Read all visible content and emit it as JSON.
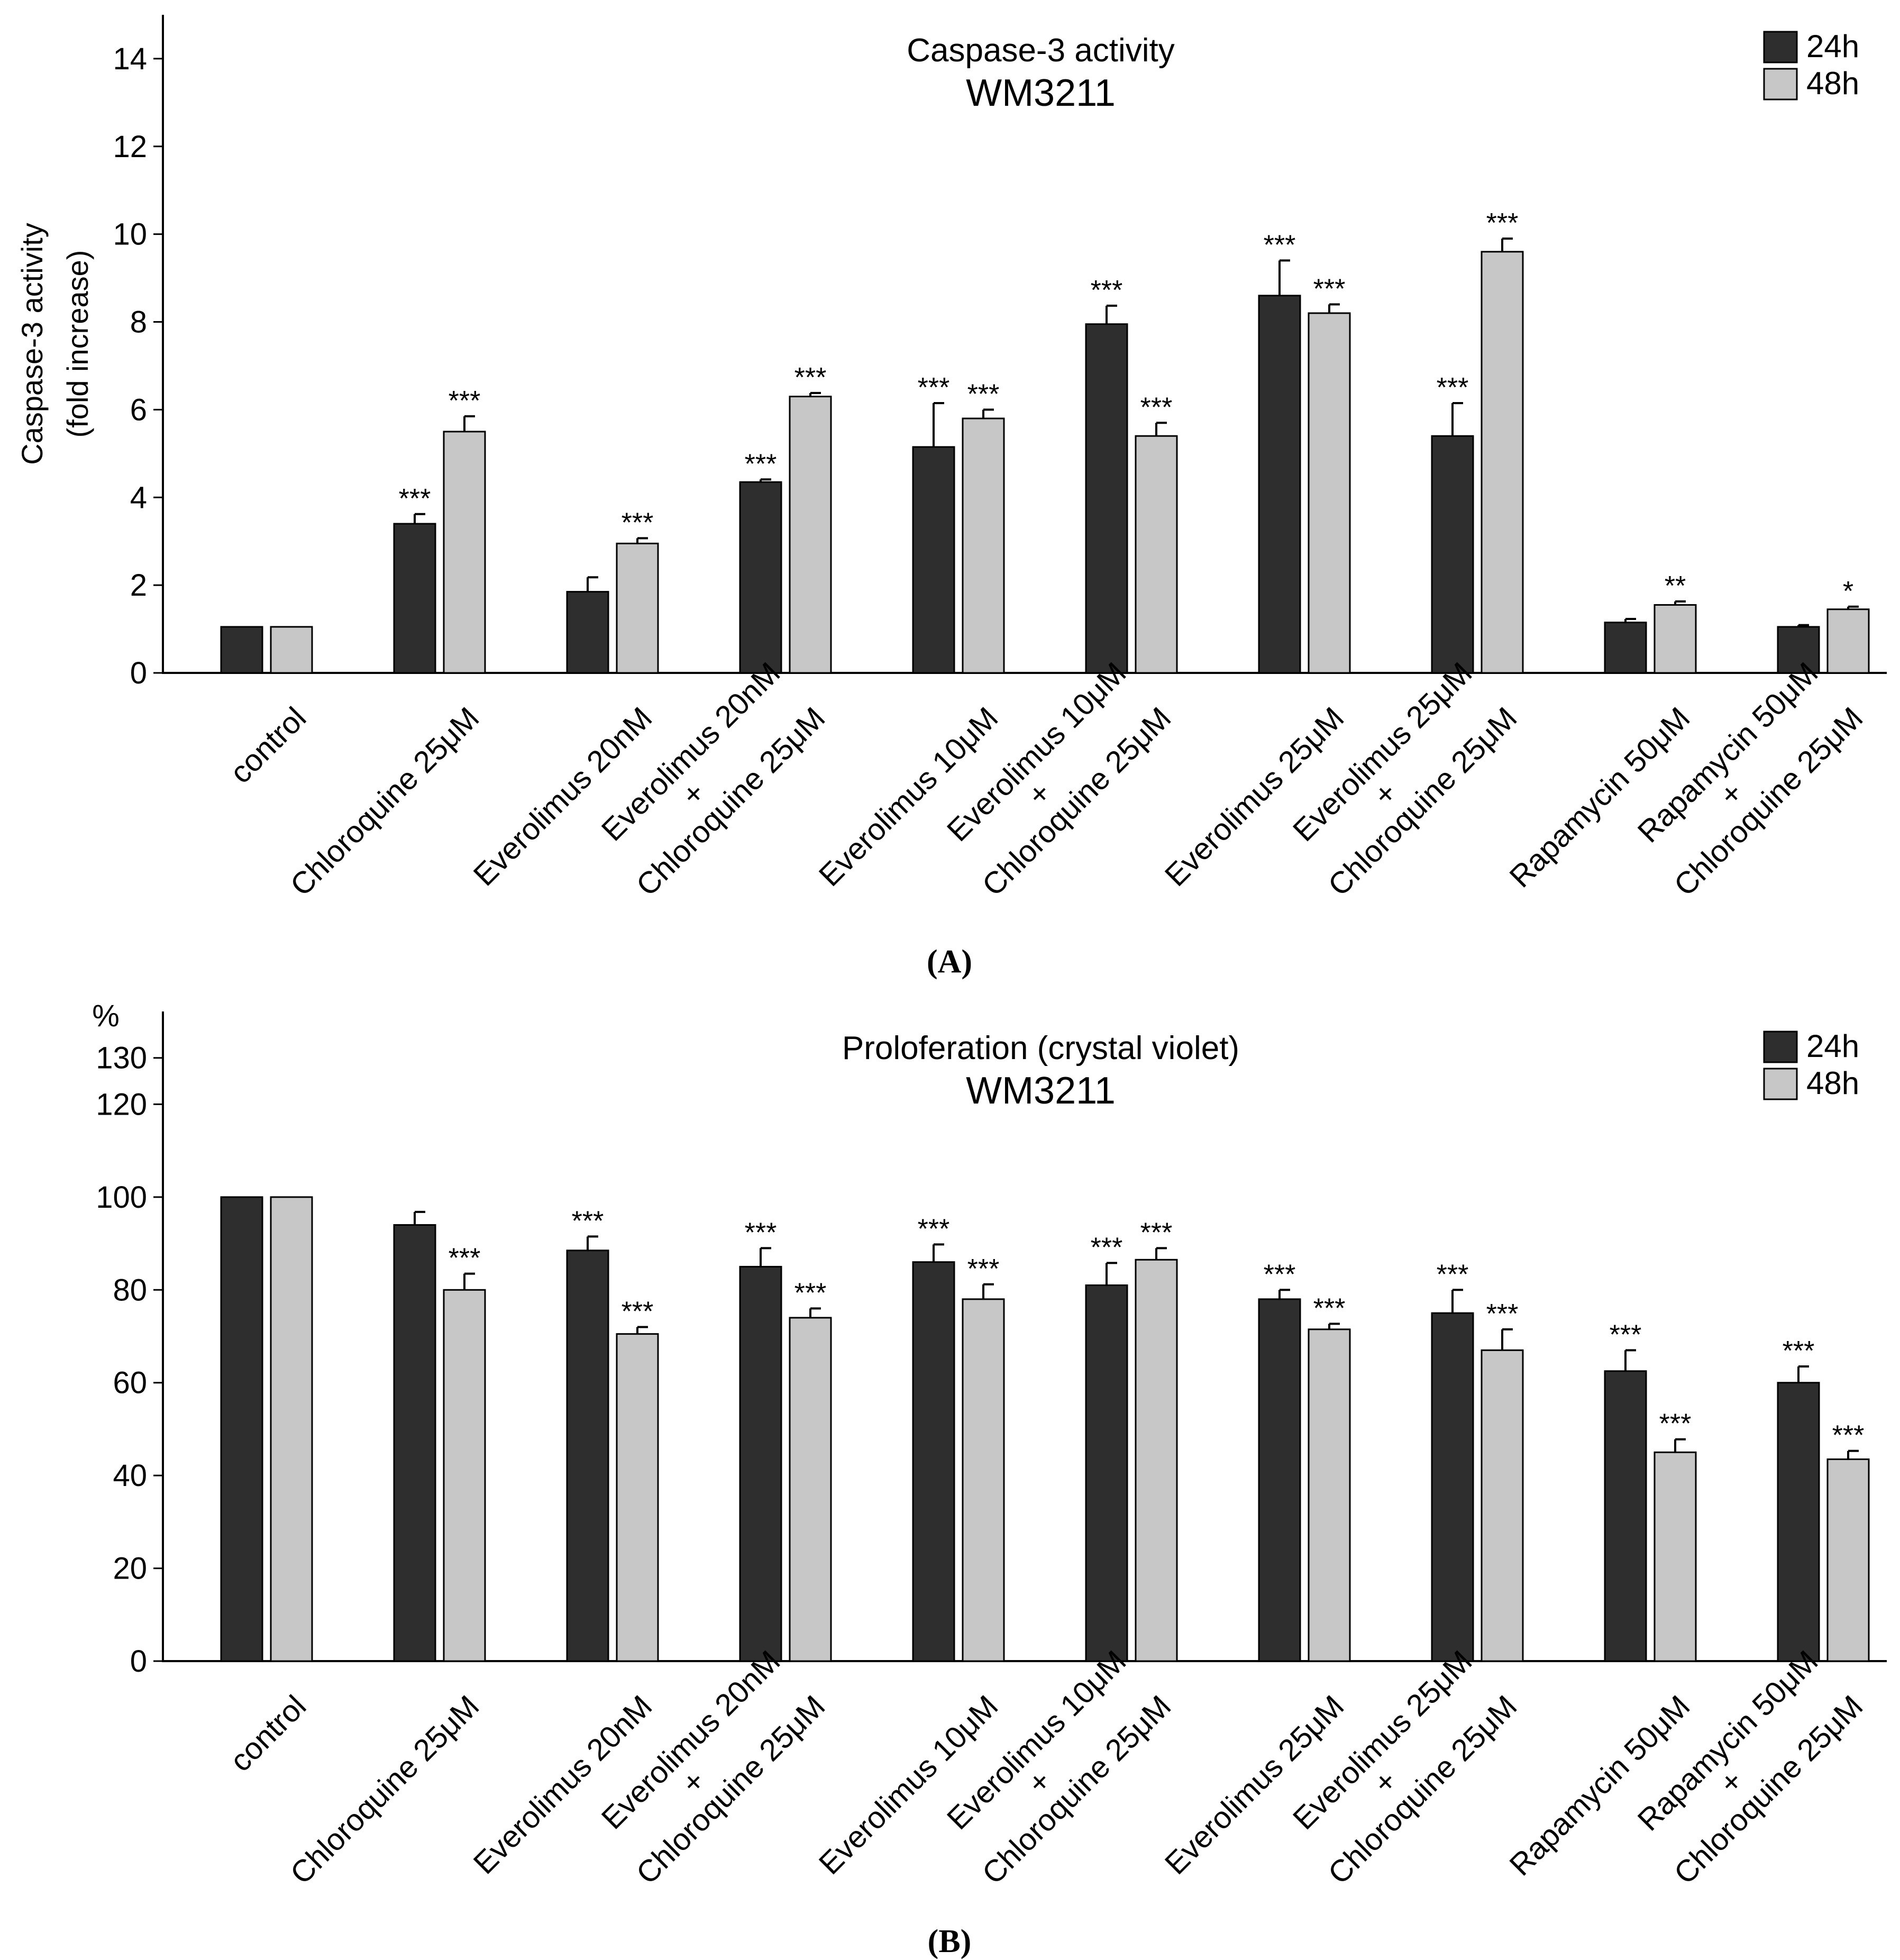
{
  "colors": {
    "series_24h": "#2e2e2e",
    "series_48h": "#c7c7c7",
    "axis": "#000000"
  },
  "chart_data": [
    {
      "type": "bar",
      "panel_label": "(A)",
      "title": "Caspase-3 activity",
      "subtitle": "WM3211",
      "ylabel": "Caspase-3 activity",
      "ylabel2": "(fold increase)",
      "unit_label": "",
      "ylim": [
        0,
        15
      ],
      "yticks": [
        0,
        2,
        4,
        6,
        8,
        10,
        12,
        14
      ],
      "legend_position": "top-right",
      "categories": [
        [
          "control"
        ],
        [
          "Chloroquine 25μM"
        ],
        [
          "Everolimus 20nM"
        ],
        [
          "Everolimus 20nM",
          "+",
          "Chloroquine 25μM"
        ],
        [
          "Everolimus 10μM"
        ],
        [
          "Everolimus 10μM",
          "+",
          "Chloroquine 25μM"
        ],
        [
          "Everolimus 25μM"
        ],
        [
          "Everolimus 25μM",
          "+",
          "Chloroquine 25μM"
        ],
        [
          "Rapamycin 50μM"
        ],
        [
          "Rapamycin 50μM",
          "+",
          "Chloroquine 25μM"
        ]
      ],
      "series": [
        {
          "name": "24h",
          "values": [
            1.05,
            3.4,
            1.85,
            4.35,
            5.15,
            7.95,
            8.6,
            5.4,
            1.15,
            1.05
          ],
          "errors": [
            0,
            0.22,
            0.33,
            0.06,
            1.0,
            0.42,
            0.8,
            0.75,
            0.08,
            0.04
          ],
          "significance": [
            "",
            "***",
            "",
            "***",
            "***",
            "***",
            "***",
            "***",
            "",
            ""
          ]
        },
        {
          "name": "48h",
          "values": [
            1.05,
            5.5,
            2.95,
            6.3,
            5.8,
            5.4,
            8.2,
            9.6,
            1.55,
            1.45
          ],
          "errors": [
            0,
            0.35,
            0.12,
            0.08,
            0.2,
            0.3,
            0.2,
            0.3,
            0.08,
            0.06
          ],
          "significance": [
            "",
            "***",
            "***",
            "***",
            "***",
            "***",
            "***",
            "***",
            "**",
            "*"
          ]
        }
      ]
    },
    {
      "type": "bar",
      "panel_label": "(B)",
      "title": "Proloferation (crystal violet)",
      "subtitle": "WM3211",
      "ylabel": "",
      "ylabel2": "",
      "unit_label": "%",
      "ylim": [
        0,
        140
      ],
      "yticks": [
        0,
        20,
        40,
        60,
        80,
        100,
        120,
        130
      ],
      "legend_position": "top-right",
      "categories": [
        [
          "control"
        ],
        [
          "Chloroquine 25μM"
        ],
        [
          "Everolimus 20nM"
        ],
        [
          "Everolimus 20nM",
          "+",
          "Chloroquine 25μM"
        ],
        [
          "Everolimus 10μM"
        ],
        [
          "Everolimus 10μM",
          "+",
          "Chloroquine 25μM"
        ],
        [
          "Everolimus 25μM"
        ],
        [
          "Everolimus 25μM",
          "+",
          "Chloroquine 25μM"
        ],
        [
          "Rapamycin 50μM"
        ],
        [
          "Rapamycin 50μM",
          "+",
          "Chloroquine 25μM"
        ]
      ],
      "series": [
        {
          "name": "24h",
          "values": [
            100,
            94,
            88.5,
            85,
            86,
            81,
            78,
            75,
            62.5,
            60
          ],
          "errors": [
            0,
            2.8,
            3,
            4,
            3.8,
            4.8,
            2,
            5,
            4.5,
            3.5
          ],
          "significance": [
            "",
            "",
            "***",
            "***",
            "***",
            "***",
            "***",
            "***",
            "***",
            "***"
          ]
        },
        {
          "name": "48h",
          "values": [
            100,
            80,
            70.5,
            74,
            78,
            86.5,
            71.5,
            67,
            45,
            43.5
          ],
          "errors": [
            0,
            3.5,
            1.5,
            2,
            3.2,
            2.5,
            1.2,
            4.5,
            2.8,
            1.8
          ],
          "significance": [
            "",
            "***",
            "***",
            "***",
            "***",
            "***",
            "***",
            "***",
            "***",
            "***"
          ]
        }
      ]
    }
  ]
}
